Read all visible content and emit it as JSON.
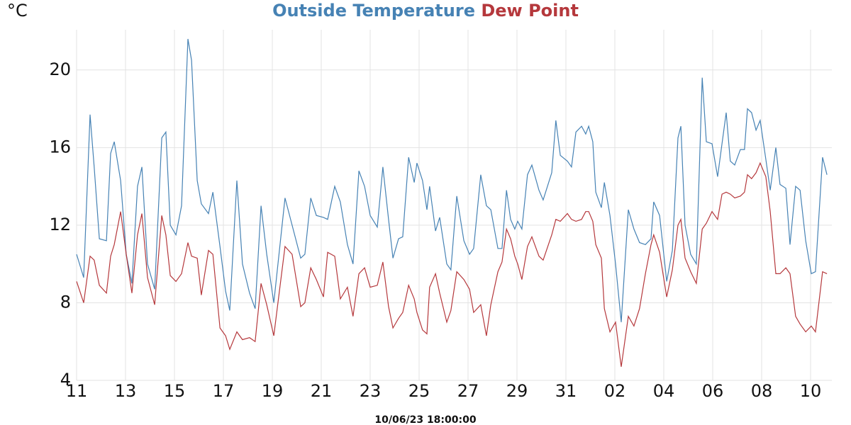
{
  "chart_data": {
    "type": "line",
    "y_unit": "°C",
    "footer": "10/06/23 18:00:00",
    "x": [
      0,
      0.29,
      0.55,
      0.72,
      0.93,
      1.22,
      1.39,
      1.54,
      1.8,
      2.03,
      2.26,
      2.49,
      2.67,
      2.9,
      3.19,
      3.48,
      3.65,
      3.83,
      4.06,
      4.29,
      4.55,
      4.7,
      4.93,
      5.1,
      5.39,
      5.57,
      5.86,
      6.09,
      6.26,
      6.55,
      6.78,
      7.07,
      7.3,
      7.54,
      7.77,
      8.06,
      8.52,
      8.81,
      9.16,
      9.33,
      9.57,
      9.8,
      10.09,
      10.26,
      10.55,
      10.78,
      11.07,
      11.3,
      11.54,
      11.77,
      12.0,
      12.29,
      12.52,
      12.75,
      12.93,
      13.16,
      13.33,
      13.57,
      13.8,
      13.91,
      14.14,
      14.32,
      14.43,
      14.67,
      14.84,
      15.13,
      15.3,
      15.54,
      15.83,
      16.06,
      16.23,
      16.52,
      16.75,
      16.93,
      17.22,
      17.39,
      17.57,
      17.74,
      17.91,
      18.03,
      18.2,
      18.43,
      18.61,
      18.9,
      19.07,
      19.42,
      19.59,
      19.77,
      20.06,
      20.23,
      20.41,
      20.64,
      20.81,
      20.93,
      21.1,
      21.22,
      21.45,
      21.57,
      21.8,
      22.03,
      22.26,
      22.55,
      22.78,
      23.01,
      23.25,
      23.48,
      23.59,
      23.83,
      24.12,
      24.35,
      24.58,
      24.7,
      24.87,
      25.1,
      25.33,
      25.57,
      25.74,
      25.97,
      26.2,
      26.38,
      26.55,
      26.72,
      26.9,
      27.13,
      27.3,
      27.42,
      27.59,
      27.77,
      27.94,
      28.17,
      28.35,
      28.58,
      28.75,
      28.99,
      29.16,
      29.39,
      29.57,
      29.8,
      30.03,
      30.2,
      30.49,
      30.67
    ],
    "series": [
      {
        "name": "Outside Temperature",
        "color": "#4682b4",
        "values": [
          10.5,
          9.3,
          17.7,
          15,
          11.3,
          11.2,
          15.7,
          16.3,
          14.3,
          10.5,
          9.0,
          14,
          15,
          10,
          8.7,
          16.5,
          16.8,
          12,
          11.5,
          13,
          21.6,
          20.5,
          14.3,
          13.1,
          12.6,
          13.7,
          10.9,
          8.6,
          7.6,
          14.3,
          10,
          8.5,
          7.7,
          13,
          10.5,
          8,
          13.4,
          12,
          10.3,
          10.5,
          13.4,
          12.5,
          12.4,
          12.3,
          14,
          13.2,
          11,
          10,
          14.8,
          14,
          12.5,
          11.9,
          15,
          12.3,
          10.3,
          11.3,
          11.4,
          15.5,
          14.2,
          15.2,
          14.3,
          12.8,
          14,
          11.7,
          12.4,
          10,
          9.7,
          13.5,
          11.2,
          10.5,
          10.8,
          14.6,
          13,
          12.8,
          10.8,
          10.8,
          13.8,
          12.3,
          11.8,
          12.2,
          11.8,
          14.6,
          15.1,
          13.8,
          13.3,
          14.7,
          17.4,
          15.6,
          15.3,
          15,
          16.8,
          17.1,
          16.7,
          17.1,
          16.3,
          13.7,
          12.9,
          14.2,
          12.5,
          10,
          7,
          12.8,
          11.8,
          11.1,
          11,
          11.3,
          13.2,
          12.5,
          9.1,
          10.7,
          16.5,
          17.1,
          12,
          10.5,
          10,
          19.6,
          16.3,
          16.2,
          14.5,
          16.2,
          17.8,
          15.3,
          15.1,
          15.9,
          15.9,
          18,
          17.8,
          16.9,
          17.4,
          15.4,
          13.8,
          16,
          14.1,
          13.9,
          11,
          14,
          13.8,
          11.2,
          9.5,
          9.6,
          15.5,
          14.6
        ]
      },
      {
        "name": "Dew Point",
        "color": "#b5383c",
        "values": [
          9.1,
          8,
          10.4,
          10.2,
          8.9,
          8.5,
          10.4,
          11,
          12.7,
          10.5,
          8.5,
          11.5,
          12.6,
          9.3,
          7.9,
          12.5,
          11.5,
          9.4,
          9.1,
          9.5,
          11.1,
          10.4,
          10.3,
          8.4,
          10.7,
          10.5,
          6.7,
          6.3,
          5.6,
          6.5,
          6.1,
          6.2,
          6,
          9,
          7.9,
          6.3,
          10.9,
          10.5,
          7.8,
          8,
          9.8,
          9.2,
          8.3,
          10.6,
          10.4,
          8.2,
          8.8,
          7.3,
          9.5,
          9.8,
          8.8,
          8.9,
          10.1,
          7.8,
          6.7,
          7.2,
          7.5,
          8.9,
          8.2,
          7.5,
          6.6,
          6.4,
          8.8,
          9.5,
          8.5,
          7,
          7.6,
          9.6,
          9.2,
          8.7,
          7.5,
          7.9,
          6.3,
          7.9,
          9.6,
          10.1,
          11.8,
          11.3,
          10.4,
          10,
          9.2,
          10.9,
          11.4,
          10.4,
          10.2,
          11.5,
          12.3,
          12.2,
          12.6,
          12.3,
          12.2,
          12.3,
          12.7,
          12.7,
          12.2,
          11,
          10.3,
          7.7,
          6.5,
          7,
          4.7,
          7.3,
          6.8,
          7.7,
          9.5,
          11,
          11.5,
          10.6,
          8.3,
          9.7,
          12,
          12.3,
          10.3,
          9.6,
          9,
          11.8,
          12.1,
          12.7,
          12.3,
          13.6,
          13.7,
          13.6,
          13.4,
          13.5,
          13.7,
          14.6,
          14.4,
          14.7,
          15.2,
          14.5,
          12.7,
          9.5,
          9.5,
          9.8,
          9.5,
          7.3,
          6.9,
          6.5,
          6.8,
          6.5,
          9.6,
          9.5
        ]
      }
    ],
    "xlim": [
      0,
      30.87
    ],
    "xticks": [
      {
        "value": 0,
        "label": "11"
      },
      {
        "value": 2,
        "label": "13"
      },
      {
        "value": 4,
        "label": "15"
      },
      {
        "value": 6,
        "label": "17"
      },
      {
        "value": 8,
        "label": "19"
      },
      {
        "value": 10,
        "label": "21"
      },
      {
        "value": 12,
        "label": "23"
      },
      {
        "value": 14,
        "label": "25"
      },
      {
        "value": 16,
        "label": "27"
      },
      {
        "value": 18,
        "label": "29"
      },
      {
        "value": 20,
        "label": "31"
      },
      {
        "value": 22,
        "label": "02"
      },
      {
        "value": 24,
        "label": "04"
      },
      {
        "value": 26,
        "label": "06"
      },
      {
        "value": 28,
        "label": "08"
      },
      {
        "value": 30,
        "label": "10"
      }
    ],
    "ylim": [
      4,
      22
    ],
    "yticks": [
      4,
      8,
      12,
      16,
      20
    ],
    "grid": true
  }
}
